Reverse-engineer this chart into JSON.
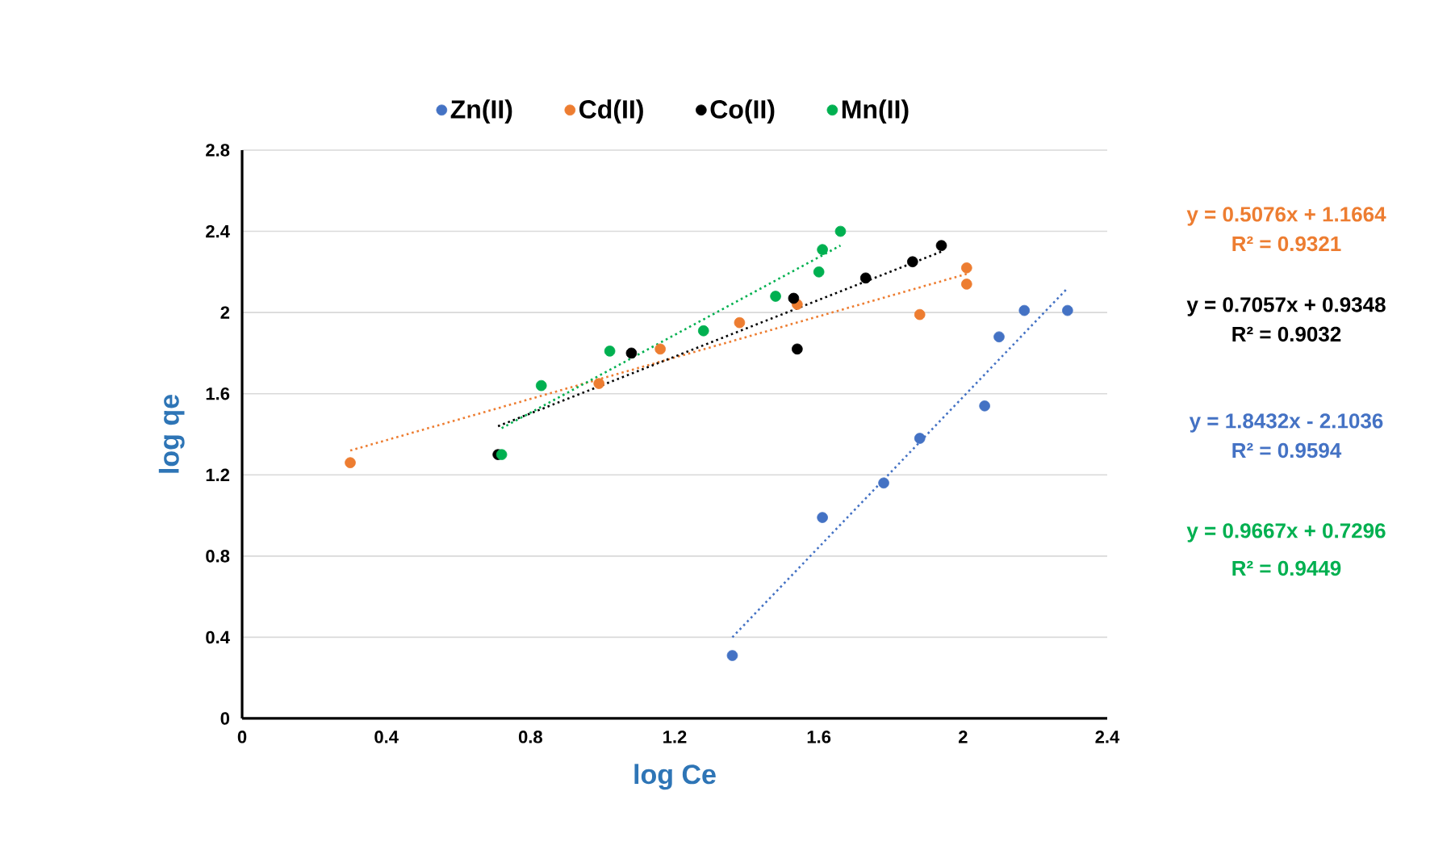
{
  "chart_data": {
    "type": "scatter",
    "xlabel": "log Ce",
    "ylabel": "log qe",
    "xlim": [
      0,
      2.4
    ],
    "ylim": [
      0,
      2.8
    ],
    "xticks": [
      0,
      0.4,
      0.8,
      1.2,
      1.6,
      2,
      2.4
    ],
    "yticks": [
      0,
      0.4,
      0.8,
      1.2,
      1.6,
      2,
      2.4,
      2.8
    ],
    "grid": "y",
    "legend": "top",
    "series": [
      {
        "name": "Zn(II)",
        "marker": "circle",
        "color": "#4472c4",
        "x": [
          1.36,
          1.61,
          1.78,
          1.88,
          2.06,
          2.1,
          2.17,
          2.29
        ],
        "values": [
          0.31,
          0.99,
          1.16,
          1.38,
          1.54,
          1.88,
          2.01,
          2.01
        ]
      },
      {
        "name": "Cd(II)",
        "marker": "circle",
        "color": "#ed7d31",
        "x": [
          0.3,
          0.99,
          1.16,
          1.38,
          1.54,
          1.88,
          2.01,
          2.01
        ],
        "values": [
          1.26,
          1.65,
          1.82,
          1.95,
          2.04,
          1.99,
          2.14,
          2.22
        ]
      },
      {
        "name": "Co(II)",
        "marker": "circle",
        "color": "#000000",
        "x": [
          0.71,
          1.08,
          1.53,
          1.54,
          1.73,
          1.86,
          1.94
        ],
        "values": [
          1.3,
          1.8,
          2.07,
          1.82,
          2.17,
          2.25,
          2.33
        ]
      },
      {
        "name": "Mn(II)",
        "marker": "circle",
        "color": "#00b050",
        "x": [
          0.72,
          0.83,
          1.02,
          1.28,
          1.48,
          1.6,
          1.61,
          1.66
        ],
        "values": [
          1.3,
          1.64,
          1.81,
          1.91,
          2.08,
          2.2,
          2.31,
          2.4
        ]
      },
      {
        "type": "line",
        "line_style": "dotted",
        "marker": "none",
        "color": "#ed7d31",
        "x": [
          0.3,
          2.01
        ],
        "values": [
          1.32,
          2.19
        ]
      },
      {
        "type": "line",
        "line_style": "dotted",
        "marker": "none",
        "color": "#000000",
        "x": [
          0.71,
          1.94
        ],
        "values": [
          1.44,
          2.3
        ]
      },
      {
        "type": "line",
        "line_style": "dotted",
        "marker": "none",
        "color": "#4472c4",
        "x": [
          1.36,
          2.29
        ],
        "values": [
          0.4,
          2.12
        ]
      },
      {
        "type": "line",
        "line_style": "dotted",
        "marker": "none",
        "color": "#00b050",
        "x": [
          0.72,
          1.66
        ],
        "values": [
          1.43,
          2.33
        ]
      }
    ],
    "annotations": [
      "y = 0.5076x + 1.1664",
      "R² = 0.9321",
      "y = 0.7057x + 0.9348",
      "R² = 0.9032",
      "y = 1.8432x - 2.1036",
      "R² = 0.9594",
      "y = 0.9667x + 0.7296",
      "R² = 0.9449"
    ]
  }
}
